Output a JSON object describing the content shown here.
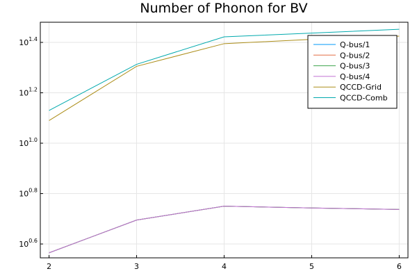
{
  "chart_data": {
    "type": "line",
    "title": "Number of Phonon for BV",
    "xlabel": "",
    "ylabel": "",
    "x": [
      2,
      3,
      4,
      5,
      6
    ],
    "xticks": [
      "2",
      "3",
      "4",
      "5",
      "6"
    ],
    "yscale": "log10",
    "yticks": [
      {
        "base": "10",
        "exp": "0.6",
        "log10": 0.6
      },
      {
        "base": "10",
        "exp": "0.8",
        "log10": 0.8
      },
      {
        "base": "10",
        "exp": "1.0",
        "log10": 1.0
      },
      {
        "base": "10",
        "exp": "1.2",
        "log10": 1.2
      },
      {
        "base": "10",
        "exp": "1.4",
        "log10": 1.4
      }
    ],
    "xlim": [
      1.9,
      6.1
    ],
    "ylim_log10": [
      0.545,
      1.48
    ],
    "grid": true,
    "legend_position": "top-right",
    "series": [
      {
        "name": "Q-bus/1",
        "color": "#009AFA",
        "log10_values": [
          0.565,
          0.695,
          0.75,
          0.743,
          0.737
        ]
      },
      {
        "name": "Q-bus/2",
        "color": "#E36F47",
        "log10_values": [
          0.565,
          0.695,
          0.75,
          0.743,
          0.737
        ]
      },
      {
        "name": "Q-bus/3",
        "color": "#3EA44E",
        "log10_values": [
          0.565,
          0.695,
          0.75,
          0.743,
          0.737
        ]
      },
      {
        "name": "Q-bus/4",
        "color": "#C271D2",
        "log10_values": [
          0.565,
          0.695,
          0.75,
          0.743,
          0.737
        ]
      },
      {
        "name": "QCCD-Grid",
        "color": "#AC8D18",
        "log10_values": [
          1.09,
          1.305,
          1.395,
          1.412,
          1.425
        ]
      },
      {
        "name": "QCCD-Comb",
        "color": "#00A9AD",
        "log10_values": [
          1.13,
          1.313,
          1.422,
          1.437,
          1.452
        ]
      }
    ]
  }
}
